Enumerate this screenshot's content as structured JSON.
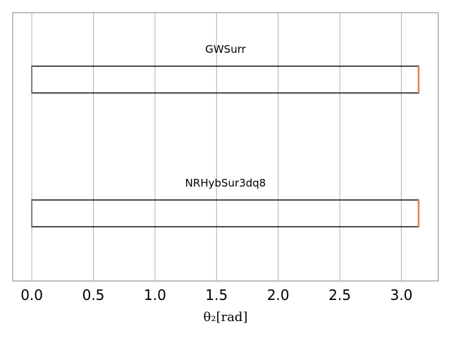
{
  "chart_data": {
    "type": "box",
    "orientation": "horizontal",
    "xlabel": "θ₂[rad]",
    "xlim": [
      -0.155,
      3.3
    ],
    "xticks": [
      0.0,
      0.5,
      1.0,
      1.5,
      2.0,
      2.5,
      3.0
    ],
    "xtick_labels": [
      "0.0",
      "0.5",
      "1.0",
      "1.5",
      "2.0",
      "2.5",
      "3.0"
    ],
    "grid_x": true,
    "series": [
      {
        "name": "GWSurr",
        "min": 0.0,
        "q1": 0.0,
        "median": 3.14,
        "q3": 3.14,
        "max": 3.14
      },
      {
        "name": "NRHybSur3dq8",
        "min": 0.0,
        "q1": 0.0,
        "median": 3.14,
        "q3": 3.14,
        "max": 3.14
      }
    ],
    "colors": {
      "box": "#000000",
      "median": "#dd8452",
      "whisker": "#808080",
      "grid": "#b0b0b0",
      "frame": "#808080"
    }
  }
}
